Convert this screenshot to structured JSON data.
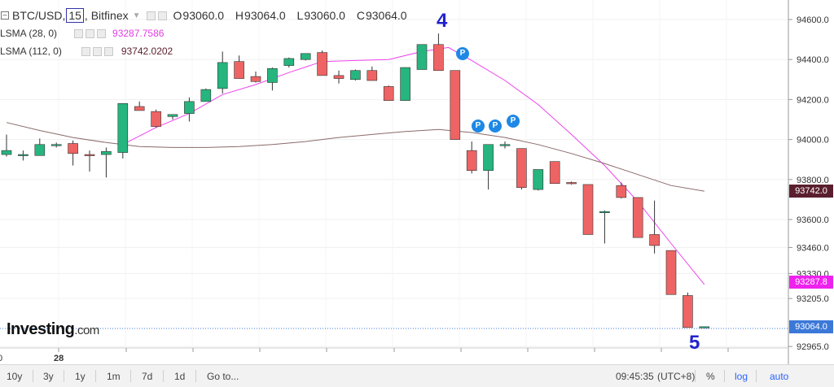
{
  "legend": {
    "symbol": "BTC/USD,",
    "interval": "15",
    "exchange": ", Bitfinex",
    "open_label": "O",
    "open": "93060.0",
    "high_label": "H",
    "high": "93064.0",
    "low_label": "L",
    "low": "93060.0",
    "close_label": "C",
    "close": "93064.0",
    "ma28_label": "LSMA (28, 0)",
    "ma28_value": "93287.7586",
    "ma28_color": "#e040e0",
    "ma112_label": "LSMA (112, 0)",
    "ma112_value": "93742.0202",
    "ma112_color": "#5a1f2e"
  },
  "logo": {
    "name": "Investing",
    "suffix": ".com"
  },
  "annotations": {
    "wave4": "4",
    "wave5": "5",
    "marker": "P"
  },
  "price_labels": {
    "ma112": {
      "text": "93742.0",
      "value": 93742.0,
      "color": "#5a1f2e"
    },
    "ma28": {
      "text": "93287.8",
      "value": 93287.8,
      "color": "#ee22ee"
    },
    "last": {
      "text": "93064.0",
      "value": 93064.0,
      "color": "#3b78d8"
    }
  },
  "chart_data": {
    "type": "candlestick",
    "ylim": [
      92950,
      94700
    ],
    "y_ticks": [
      94600.0,
      94400.0,
      94200.0,
      94000.0,
      93800.0,
      93600.0,
      93460.0,
      93330.0,
      93205.0,
      92965.0
    ],
    "x_tick_labels": [
      "0",
      "28"
    ],
    "up_color": "#26b57e",
    "down_color": "#ee6464",
    "candles": [
      {
        "o": 93925,
        "h": 94025,
        "l": 93915,
        "c": 93945
      },
      {
        "o": 93925,
        "h": 93945,
        "l": 93895,
        "c": 93925
      },
      {
        "o": 93920,
        "h": 94005,
        "l": 93920,
        "c": 93975
      },
      {
        "o": 93970,
        "h": 93985,
        "l": 93960,
        "c": 93975
      },
      {
        "o": 93980,
        "h": 93995,
        "l": 93870,
        "c": 93930
      },
      {
        "o": 93925,
        "h": 93945,
        "l": 93840,
        "c": 93920
      },
      {
        "o": 93925,
        "h": 93960,
        "l": 93810,
        "c": 93940
      },
      {
        "o": 93935,
        "h": 94180,
        "l": 93905,
        "c": 94180
      },
      {
        "o": 94165,
        "h": 94190,
        "l": 94150,
        "c": 94145
      },
      {
        "o": 94140,
        "h": 94150,
        "l": 94060,
        "c": 94065
      },
      {
        "o": 94115,
        "h": 94125,
        "l": 94100,
        "c": 94125
      },
      {
        "o": 94130,
        "h": 94210,
        "l": 94090,
        "c": 94190
      },
      {
        "o": 94190,
        "h": 94255,
        "l": 94190,
        "c": 94250
      },
      {
        "o": 94255,
        "h": 94440,
        "l": 94230,
        "c": 94385
      },
      {
        "o": 94390,
        "h": 94420,
        "l": 94305,
        "c": 94305
      },
      {
        "o": 94315,
        "h": 94340,
        "l": 94285,
        "c": 94290
      },
      {
        "o": 94285,
        "h": 94360,
        "l": 94245,
        "c": 94355
      },
      {
        "o": 94370,
        "h": 94410,
        "l": 94360,
        "c": 94405
      },
      {
        "o": 94400,
        "h": 94430,
        "l": 94395,
        "c": 94430
      },
      {
        "o": 94435,
        "h": 94445,
        "l": 94320,
        "c": 94320
      },
      {
        "o": 94320,
        "h": 94345,
        "l": 94280,
        "c": 94305
      },
      {
        "o": 94300,
        "h": 94350,
        "l": 94295,
        "c": 94345
      },
      {
        "o": 94345,
        "h": 94365,
        "l": 94295,
        "c": 94295
      },
      {
        "o": 94265,
        "h": 94270,
        "l": 94200,
        "c": 94195
      },
      {
        "o": 94195,
        "h": 94360,
        "l": 94195,
        "c": 94360
      },
      {
        "o": 94350,
        "h": 94475,
        "l": 94350,
        "c": 94475
      },
      {
        "o": 94475,
        "h": 94530,
        "l": 94345,
        "c": 94345
      },
      {
        "o": 94345,
        "h": 94345,
        "l": 94000,
        "c": 94000
      },
      {
        "o": 93945,
        "h": 93990,
        "l": 93830,
        "c": 93845
      },
      {
        "o": 93845,
        "h": 93975,
        "l": 93750,
        "c": 93975
      },
      {
        "o": 93975,
        "h": 93990,
        "l": 93955,
        "c": 93975
      },
      {
        "o": 93955,
        "h": 93955,
        "l": 93750,
        "c": 93760
      },
      {
        "o": 93750,
        "h": 93850,
        "l": 93745,
        "c": 93850
      },
      {
        "o": 93890,
        "h": 93890,
        "l": 93780,
        "c": 93780
      },
      {
        "o": 93785,
        "h": 93790,
        "l": 93775,
        "c": 93780
      },
      {
        "o": 93775,
        "h": 93775,
        "l": 93525,
        "c": 93525
      },
      {
        "o": 93640,
        "h": 93645,
        "l": 93480,
        "c": 93640
      },
      {
        "o": 93770,
        "h": 93785,
        "l": 93705,
        "c": 93710
      },
      {
        "o": 93710,
        "h": 93710,
        "l": 93510,
        "c": 93510
      },
      {
        "o": 93525,
        "h": 93695,
        "l": 93430,
        "c": 93470
      },
      {
        "o": 93445,
        "h": 93445,
        "l": 93225,
        "c": 93225
      },
      {
        "o": 93220,
        "h": 93235,
        "l": 93060,
        "c": 93060
      },
      {
        "o": 93060,
        "h": 93064,
        "l": 93060,
        "c": 93064
      }
    ],
    "series": [
      {
        "name": "LSMA (28, 0)",
        "color": "#ee44ee",
        "points": [
          [
            7,
            93975
          ],
          [
            9,
            94060
          ],
          [
            11,
            94130
          ],
          [
            13,
            94225
          ],
          [
            15,
            94275
          ],
          [
            17,
            94335
          ],
          [
            19,
            94390
          ],
          [
            21,
            94395
          ],
          [
            23,
            94400
          ],
          [
            25,
            94440
          ],
          [
            26.6,
            94460
          ],
          [
            28,
            94395
          ],
          [
            30,
            94295
          ],
          [
            32,
            94175
          ],
          [
            34,
            94025
          ],
          [
            36,
            93870
          ],
          [
            38,
            93690
          ],
          [
            40,
            93480
          ],
          [
            42,
            93275
          ]
        ]
      },
      {
        "name": "LSMA (112, 0)",
        "color": "#8a6a6a",
        "points": [
          [
            0,
            94085
          ],
          [
            2,
            94045
          ],
          [
            4,
            94010
          ],
          [
            6,
            93985
          ],
          [
            8,
            93965
          ],
          [
            10,
            93960
          ],
          [
            12,
            93960
          ],
          [
            14,
            93965
          ],
          [
            16,
            93975
          ],
          [
            18,
            93990
          ],
          [
            20,
            94010
          ],
          [
            22,
            94025
          ],
          [
            24,
            94040
          ],
          [
            26,
            94050
          ],
          [
            28,
            94035
          ],
          [
            30,
            94010
          ],
          [
            32,
            93975
          ],
          [
            34,
            93930
          ],
          [
            36,
            93880
          ],
          [
            38,
            93825
          ],
          [
            40,
            93770
          ],
          [
            42,
            93742
          ]
        ]
      }
    ]
  },
  "bottombar": {
    "ranges": [
      "10y",
      "3y",
      "1y",
      "1m",
      "7d",
      "1d"
    ],
    "goto": "Go to...",
    "time": "09:45:35",
    "tz": "(UTC+8)",
    "percent": "%",
    "log": "log",
    "auto": "auto"
  }
}
